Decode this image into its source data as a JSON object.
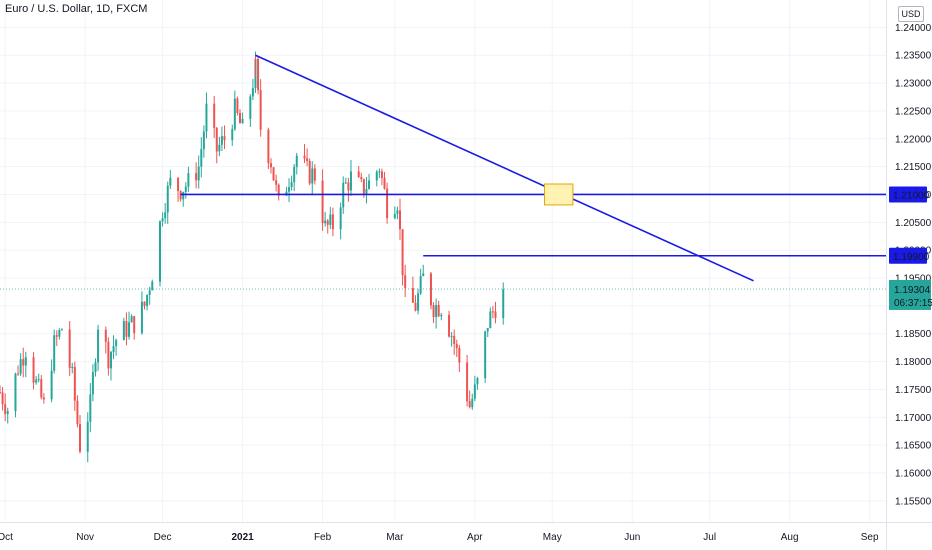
{
  "header": {
    "title": "Euro / U.S. Dollar, 1D, FXCM",
    "currency": "USD"
  },
  "price_tag": {
    "price": "1.19304",
    "countdown": "06:37:15"
  },
  "colors": {
    "up": "#26a69a",
    "down": "#ef5350",
    "line": "#1a1ae6",
    "tag_bg": "#1a1ae6",
    "last_bg": "#26a69a",
    "zone_fill": "#fff2b3",
    "zone_stroke": "#e0a800"
  },
  "chart_data": {
    "type": "candlestick",
    "title": "Euro / U.S. Dollar, 1D, FXCM",
    "ylim": [
      1.153,
      1.2415
    ],
    "xlim": [
      "2020-09-29",
      "2021-09-05"
    ],
    "y_ticks": [
      "1.15500",
      "1.16000",
      "1.16500",
      "1.17000",
      "1.17500",
      "1.18000",
      "1.18500",
      "1.19000",
      "1.19500",
      "1.20000",
      "1.20500",
      "1.21000",
      "1.21500",
      "1.22000",
      "1.22500",
      "1.23000",
      "1.23500",
      "1.24000"
    ],
    "x_ticks": [
      {
        "label": "Oct",
        "date": "2020-10-01"
      },
      {
        "label": "Nov",
        "date": "2020-11-01"
      },
      {
        "label": "Dec",
        "date": "2020-12-01"
      },
      {
        "label": "2021",
        "date": "2021-01-01",
        "bold": true
      },
      {
        "label": "Feb",
        "date": "2021-02-01"
      },
      {
        "label": "Mar",
        "date": "2021-03-01"
      },
      {
        "label": "Apr",
        "date": "2021-04-01"
      },
      {
        "label": "May",
        "date": "2021-05-01"
      },
      {
        "label": "Jun",
        "date": "2021-06-01"
      },
      {
        "label": "Jul",
        "date": "2021-07-01"
      },
      {
        "label": "Aug",
        "date": "2021-08-01"
      },
      {
        "label": "Sep",
        "date": "2021-09-01"
      }
    ],
    "candles_close": [
      {
        "date": "2020-09-29",
        "close": 1.1745
      },
      {
        "date": "2020-10-02",
        "close": 1.1715
      },
      {
        "date": "2020-10-06",
        "close": 1.179
      },
      {
        "date": "2020-10-09",
        "close": 1.1825
      },
      {
        "date": "2020-10-13",
        "close": 1.176
      },
      {
        "date": "2020-10-16",
        "close": 1.172
      },
      {
        "date": "2020-10-20",
        "close": 1.183
      },
      {
        "date": "2020-10-23",
        "close": 1.186
      },
      {
        "date": "2020-10-27",
        "close": 1.177
      },
      {
        "date": "2020-10-30",
        "close": 1.165
      },
      {
        "date": "2020-11-03",
        "close": 1.172
      },
      {
        "date": "2020-11-06",
        "close": 1.187
      },
      {
        "date": "2020-11-10",
        "close": 1.181
      },
      {
        "date": "2020-11-13",
        "close": 1.184
      },
      {
        "date": "2020-11-17",
        "close": 1.186
      },
      {
        "date": "2020-11-20",
        "close": 1.187
      },
      {
        "date": "2020-11-24",
        "close": 1.19
      },
      {
        "date": "2020-11-27",
        "close": 1.196
      },
      {
        "date": "2020-12-01",
        "close": 1.2075
      },
      {
        "date": "2020-12-04",
        "close": 1.212
      },
      {
        "date": "2020-12-08",
        "close": 1.211
      },
      {
        "date": "2020-12-11",
        "close": 1.212
      },
      {
        "date": "2020-12-15",
        "close": 1.215
      },
      {
        "date": "2020-12-18",
        "close": 1.225
      },
      {
        "date": "2020-12-22",
        "close": 1.218
      },
      {
        "date": "2020-12-25",
        "close": 1.22
      },
      {
        "date": "2020-12-29",
        "close": 1.225
      },
      {
        "date": "2021-01-01",
        "close": 1.2215
      },
      {
        "date": "2021-01-06",
        "close": 1.2325
      },
      {
        "date": "2021-01-08",
        "close": 1.222
      },
      {
        "date": "2021-01-12",
        "close": 1.216
      },
      {
        "date": "2021-01-15",
        "close": 1.208
      },
      {
        "date": "2021-01-19",
        "close": 1.213
      },
      {
        "date": "2021-01-22",
        "close": 1.217
      },
      {
        "date": "2021-01-26",
        "close": 1.214
      },
      {
        "date": "2021-01-29",
        "close": 1.2135
      },
      {
        "date": "2021-02-02",
        "close": 1.204
      },
      {
        "date": "2021-02-05",
        "close": 1.2045
      },
      {
        "date": "2021-02-09",
        "close": 1.211
      },
      {
        "date": "2021-02-12",
        "close": 1.213
      },
      {
        "date": "2021-02-16",
        "close": 1.211
      },
      {
        "date": "2021-02-19",
        "close": 1.212
      },
      {
        "date": "2021-02-23",
        "close": 1.215
      },
      {
        "date": "2021-02-26",
        "close": 1.208
      },
      {
        "date": "2021-03-02",
        "close": 1.209
      },
      {
        "date": "2021-03-05",
        "close": 1.191
      },
      {
        "date": "2021-03-09",
        "close": 1.19
      },
      {
        "date": "2021-03-12",
        "close": 1.195
      },
      {
        "date": "2021-03-16",
        "close": 1.19
      },
      {
        "date": "2021-03-19",
        "close": 1.19
      },
      {
        "date": "2021-03-23",
        "close": 1.185
      },
      {
        "date": "2021-03-26",
        "close": 1.18
      },
      {
        "date": "2021-03-30",
        "close": 1.172
      },
      {
        "date": "2021-04-02",
        "close": 1.176
      },
      {
        "date": "2021-04-06",
        "close": 1.187
      },
      {
        "date": "2021-04-09",
        "close": 1.19
      },
      {
        "date": "2021-04-12",
        "close": 1.193
      }
    ],
    "peak": {
      "date": "2021-01-06",
      "value": 1.235
    },
    "trendline": {
      "start": {
        "date": "2021-01-06",
        "value": 1.235
      },
      "end": {
        "date": "2021-07-18",
        "value": 1.1945
      }
    },
    "horizontal_levels": [
      {
        "value": 1.21,
        "label": "1.21000",
        "start_date": "2020-12-08"
      },
      {
        "value": 1.199,
        "label": "1.19900",
        "start_date": "2021-03-12"
      }
    ],
    "last_price": {
      "value": 1.19304,
      "label": "1.19304"
    },
    "highlight_zone": {
      "date_start": "2021-04-28",
      "date_end": "2021-05-09",
      "value_low": 1.2092,
      "value_high": 1.2108
    }
  }
}
